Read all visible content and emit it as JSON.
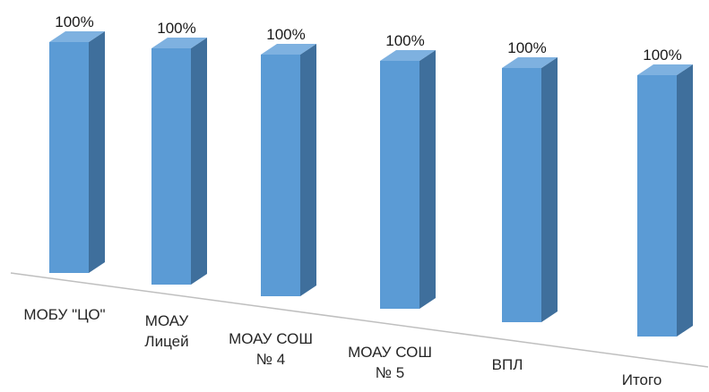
{
  "chart_data": {
    "type": "bar",
    "style": "3d-column",
    "categories": [
      [
        "МОБУ \"ЦО\""
      ],
      [
        "МОАУ",
        "Лицей"
      ],
      [
        "МОАУ СОШ",
        "№ 4"
      ],
      [
        "МОАУ СОШ",
        "№ 5"
      ],
      [
        "ВПЛ"
      ],
      [
        "Итого"
      ]
    ],
    "values": [
      100,
      100,
      100,
      100,
      100,
      100
    ],
    "data_labels": [
      "100%",
      "100%",
      "100%",
      "100%",
      "100%",
      "100%"
    ],
    "title": "",
    "xlabel": "",
    "ylabel": "",
    "ylim": [
      0,
      100
    ],
    "grid": false,
    "legend": "none",
    "colors": {
      "front": "#5b9bd5",
      "side": "#3f6f9c",
      "top": "#7eb1e0",
      "baseline": "#bfbfbf"
    }
  }
}
